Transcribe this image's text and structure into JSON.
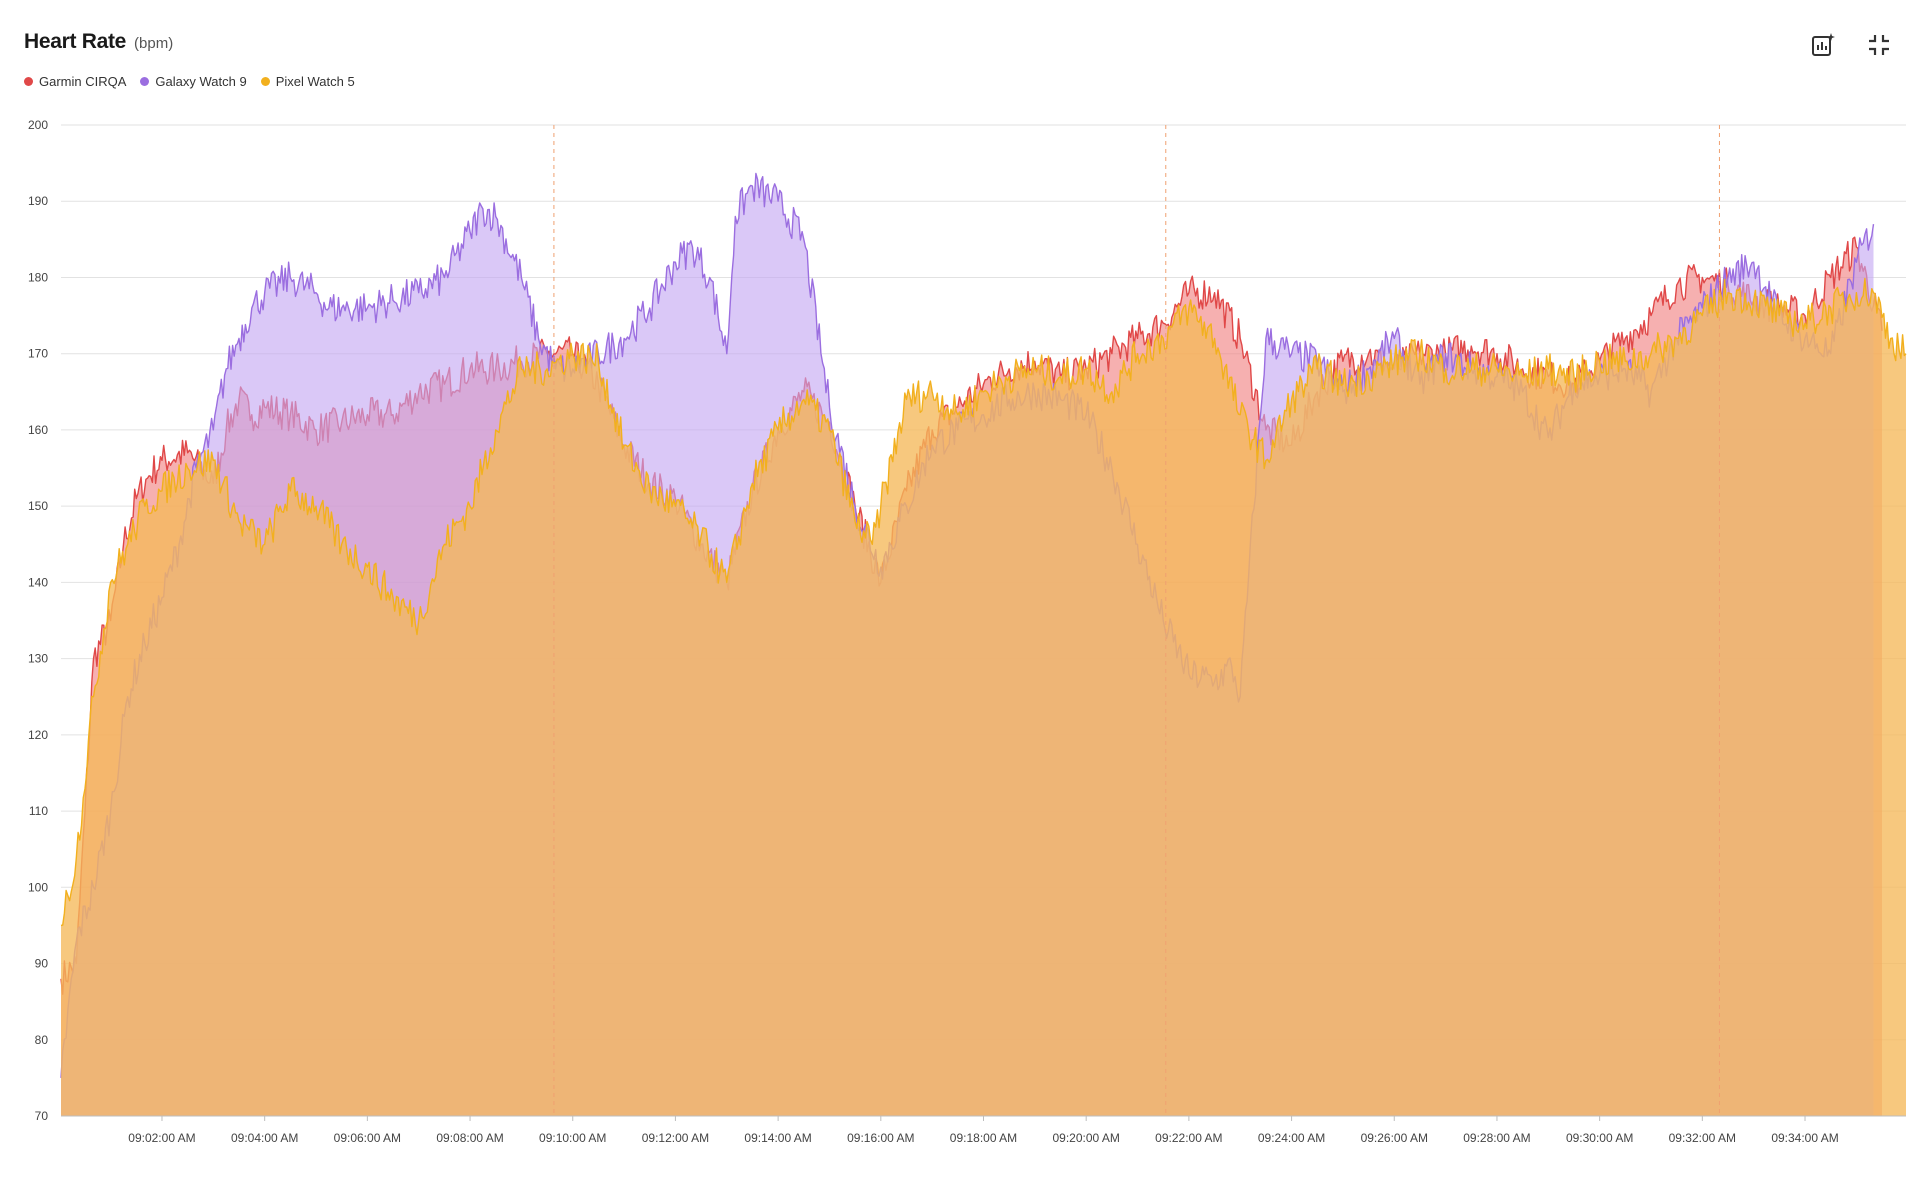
{
  "header": {
    "title": "Heart Rate",
    "unit": "(bpm)"
  },
  "toolbar": {
    "insights_icon": "chart-sparkle-icon",
    "collapse_icon": "collapse-icon"
  },
  "chart_data": {
    "type": "area",
    "title": "Heart Rate",
    "unit": "(bpm)",
    "ylim": [
      70,
      200
    ],
    "yticks": [
      70,
      80,
      90,
      100,
      110,
      120,
      130,
      140,
      150,
      160,
      170,
      180,
      190,
      200
    ],
    "xlim": [
      "09:00:02",
      "09:35:58"
    ],
    "xticks": [
      "09:02:00 AM",
      "09:04:00 AM",
      "09:06:00 AM",
      "09:08:00 AM",
      "09:10:00 AM",
      "09:12:00 AM",
      "09:14:00 AM",
      "09:16:00 AM",
      "09:18:00 AM",
      "09:20:00 AM",
      "09:22:00 AM",
      "09:24:00 AM",
      "09:26:00 AM",
      "09:28:00 AM",
      "09:30:00 AM",
      "09:32:00 AM",
      "09:34:00 AM"
    ],
    "markers": [
      "09:09:38",
      "09:21:33",
      "09:32:20"
    ],
    "grid": true,
    "legend": "top-left",
    "series": [
      {
        "name": "Garmin CIRQA",
        "color": "#e04848",
        "fill": "#f08080",
        "x": [
          "09:00:02",
          "09:00:20",
          "09:00:30",
          "09:00:40",
          "09:01:00",
          "09:01:15",
          "09:01:30",
          "09:01:45",
          "09:02:00",
          "09:02:30",
          "09:03:00",
          "09:03:15",
          "09:03:30",
          "09:03:45",
          "09:04:00",
          "09:04:30",
          "09:05:00",
          "09:05:30",
          "09:06:00",
          "09:06:30",
          "09:07:00",
          "09:07:30",
          "09:08:00",
          "09:08:30",
          "09:09:00",
          "09:09:30",
          "09:10:00",
          "09:10:30",
          "09:11:00",
          "09:11:30",
          "09:12:00",
          "09:12:30",
          "09:13:00",
          "09:13:30",
          "09:14:00",
          "09:14:30",
          "09:15:00",
          "09:15:30",
          "09:16:00",
          "09:16:30",
          "09:17:00",
          "09:17:30",
          "09:18:00",
          "09:18:30",
          "09:19:00",
          "09:19:30",
          "09:20:00",
          "09:20:30",
          "09:21:00",
          "09:21:30",
          "09:22:00",
          "09:22:30",
          "09:23:00",
          "09:23:30",
          "09:24:00",
          "09:24:30",
          "09:25:00",
          "09:25:30",
          "09:26:00",
          "09:26:30",
          "09:27:00",
          "09:27:30",
          "09:28:00",
          "09:28:30",
          "09:29:00",
          "09:29:30",
          "09:30:00",
          "09:30:30",
          "09:31:00",
          "09:31:30",
          "09:32:00",
          "09:32:30",
          "09:33:00",
          "09:33:30",
          "09:34:00",
          "09:34:30",
          "09:35:00",
          "09:35:30"
        ],
        "values": [
          88,
          90,
          110,
          130,
          135,
          145,
          151,
          154,
          156,
          157,
          153,
          160,
          164,
          162,
          163,
          162,
          160,
          161,
          162,
          162,
          165,
          166,
          168,
          168,
          169,
          170,
          170,
          166,
          158,
          153,
          151,
          145,
          140,
          152,
          160,
          165,
          161,
          150,
          140,
          152,
          160,
          163,
          166,
          168,
          169,
          167,
          168,
          170,
          172,
          174,
          178,
          178,
          172,
          160,
          158,
          165,
          169,
          170,
          168,
          170,
          170,
          171,
          170,
          168,
          167,
          166,
          169,
          172,
          175,
          179,
          180,
          179,
          177,
          176,
          175,
          180,
          184,
          173
        ]
      },
      {
        "name": "Galaxy Watch 9",
        "color": "#9b6ee0",
        "fill": "#c4a6f2",
        "x": [
          "09:00:02",
          "09:00:20",
          "09:00:40",
          "09:01:00",
          "09:01:20",
          "09:01:40",
          "09:02:00",
          "09:02:20",
          "09:02:40",
          "09:03:00",
          "09:03:15",
          "09:03:30",
          "09:03:45",
          "09:04:00",
          "09:04:30",
          "09:05:00",
          "09:05:15",
          "09:05:30",
          "09:06:00",
          "09:06:30",
          "09:07:00",
          "09:07:30",
          "09:08:00",
          "09:08:15",
          "09:08:30",
          "09:09:00",
          "09:09:20",
          "09:09:40",
          "09:10:00",
          "09:10:30",
          "09:11:00",
          "09:11:30",
          "09:12:00",
          "09:12:20",
          "09:12:40",
          "09:13:00",
          "09:13:10",
          "09:13:30",
          "09:14:00",
          "09:14:30",
          "09:15:00",
          "09:15:30",
          "09:16:00",
          "09:16:30",
          "09:17:00",
          "09:17:30",
          "09:18:00",
          "09:18:30",
          "09:19:00",
          "09:19:30",
          "09:20:00",
          "09:20:30",
          "09:21:00",
          "09:21:30",
          "09:22:00",
          "09:22:30",
          "09:22:50",
          "09:23:00",
          "09:23:30",
          "09:24:00",
          "09:24:30",
          "09:25:00",
          "09:25:30",
          "09:26:00",
          "09:26:30",
          "09:27:00",
          "09:27:30",
          "09:28:00",
          "09:28:30",
          "09:29:00",
          "09:29:30",
          "09:30:00",
          "09:30:30",
          "09:31:00",
          "09:31:30",
          "09:32:00",
          "09:32:30",
          "09:33:00",
          "09:33:30",
          "09:34:00",
          "09:34:30",
          "09:35:00",
          "09:35:20"
        ],
        "values": [
          75,
          93,
          100,
          110,
          125,
          132,
          138,
          145,
          155,
          160,
          168,
          172,
          176,
          178,
          180,
          178,
          176,
          176,
          176,
          177,
          178,
          180,
          186,
          189,
          188,
          180,
          172,
          168,
          168,
          170,
          172,
          176,
          182,
          184,
          180,
          170,
          188,
          192,
          190,
          185,
          163,
          150,
          142,
          150,
          158,
          160,
          162,
          164,
          165,
          164,
          162,
          155,
          145,
          135,
          128,
          127,
          129,
          125,
          172,
          170,
          169,
          165,
          168,
          172,
          166,
          170,
          168,
          167,
          165,
          159,
          166,
          167,
          168,
          165,
          172,
          176,
          180,
          182,
          175,
          172,
          170,
          182,
          187
        ]
      },
      {
        "name": "Pixel Watch 5",
        "color": "#f2b01e",
        "fill": "#f5b85a",
        "x": [
          "09:00:02",
          "09:00:20",
          "09:00:40",
          "09:01:00",
          "09:01:20",
          "09:01:40",
          "09:02:00",
          "09:02:30",
          "09:03:00",
          "09:03:30",
          "09:04:00",
          "09:04:30",
          "09:05:00",
          "09:05:30",
          "09:06:00",
          "09:06:30",
          "09:07:00",
          "09:07:30",
          "09:08:00",
          "09:08:30",
          "09:09:00",
          "09:09:30",
          "09:10:00",
          "09:10:30",
          "09:11:00",
          "09:11:30",
          "09:12:00",
          "09:12:30",
          "09:13:00",
          "09:13:30",
          "09:14:00",
          "09:14:30",
          "09:15:00",
          "09:15:30",
          "09:15:50",
          "09:16:00",
          "09:16:30",
          "09:17:00",
          "09:17:30",
          "09:18:00",
          "09:18:30",
          "09:19:00",
          "09:19:30",
          "09:20:00",
          "09:20:30",
          "09:21:00",
          "09:21:30",
          "09:22:00",
          "09:22:30",
          "09:23:00",
          "09:23:30",
          "09:24:00",
          "09:24:30",
          "09:25:00",
          "09:25:30",
          "09:26:00",
          "09:26:30",
          "09:27:00",
          "09:27:30",
          "09:28:00",
          "09:28:30",
          "09:29:00",
          "09:29:30",
          "09:30:00",
          "09:30:30",
          "09:31:00",
          "09:31:30",
          "09:32:00",
          "09:32:30",
          "09:33:00",
          "09:33:30",
          "09:34:00",
          "09:34:30",
          "09:35:00",
          "09:35:20",
          "09:35:40",
          "09:35:58"
        ],
        "values": [
          95,
          104,
          125,
          140,
          145,
          150,
          152,
          155,
          156,
          148,
          145,
          152,
          150,
          145,
          142,
          138,
          135,
          145,
          150,
          160,
          168,
          168,
          170,
          169,
          158,
          152,
          150,
          146,
          140,
          153,
          160,
          164,
          160,
          148,
          145,
          150,
          164,
          165,
          162,
          165,
          167,
          168,
          167,
          168,
          165,
          170,
          172,
          176,
          172,
          162,
          156,
          164,
          168,
          166,
          167,
          169,
          170,
          168,
          168,
          168,
          167,
          168,
          167,
          169,
          169,
          170,
          172,
          175,
          178,
          177,
          175,
          174,
          176,
          178,
          178,
          172,
          170
        ]
      }
    ]
  }
}
